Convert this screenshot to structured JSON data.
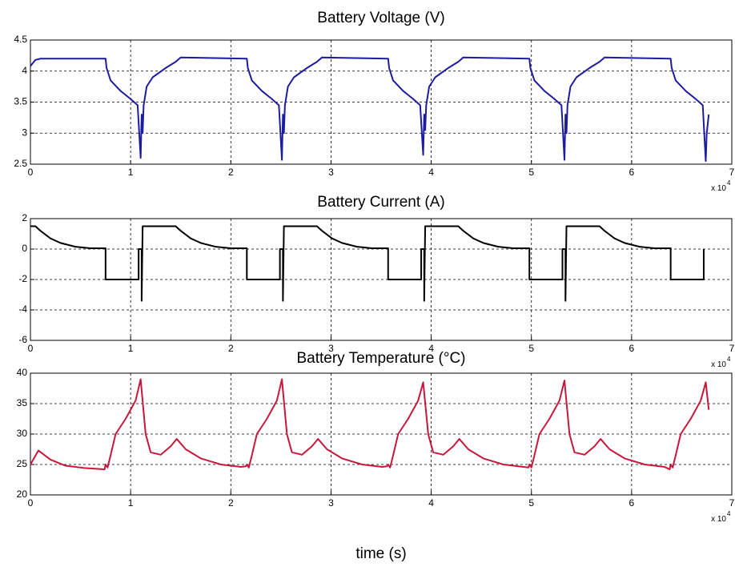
{
  "chart_data": [
    {
      "type": "line",
      "title": "Battery Voltage (V)",
      "color": "#1c1ca0",
      "xlim": [
        0,
        7
      ],
      "xticks": [
        0,
        1,
        2,
        3,
        4,
        5,
        6,
        7
      ],
      "ylim": [
        2.5,
        4.5
      ],
      "yticks": [
        2.5,
        3,
        3.5,
        4,
        4.5
      ],
      "grid": true,
      "x_multiplier": "x 10",
      "x_multiplier_exponent": 4,
      "x": [
        0,
        0.05,
        0.1,
        0.75,
        0.76,
        0.8,
        0.9,
        1.0,
        1.07,
        1.1,
        1.11,
        1.12,
        1.13,
        1.16,
        1.22,
        1.35,
        1.45,
        1.5,
        2.16,
        2.17,
        2.21,
        2.31,
        2.41,
        2.48,
        2.51,
        2.52,
        2.53,
        2.54,
        2.57,
        2.63,
        2.76,
        2.86,
        2.91,
        3.57,
        3.58,
        3.62,
        3.72,
        3.82,
        3.89,
        3.92,
        3.93,
        3.94,
        3.95,
        3.98,
        4.04,
        4.17,
        4.27,
        4.32,
        4.98,
        4.99,
        5.03,
        5.13,
        5.23,
        5.3,
        5.33,
        5.34,
        5.35,
        5.36,
        5.39,
        5.45,
        5.58,
        5.68,
        5.73,
        6.39,
        6.4,
        6.44,
        6.54,
        6.64,
        6.71,
        6.74,
        6.75,
        6.77
      ],
      "values": [
        4.08,
        4.18,
        4.2,
        4.2,
        4.05,
        3.85,
        3.68,
        3.55,
        3.45,
        2.6,
        3.3,
        3.0,
        3.45,
        3.75,
        3.9,
        4.05,
        4.15,
        4.22,
        4.2,
        4.05,
        3.85,
        3.68,
        3.55,
        3.45,
        2.57,
        3.3,
        3.0,
        3.45,
        3.75,
        3.9,
        4.05,
        4.15,
        4.22,
        4.2,
        4.05,
        3.85,
        3.68,
        3.55,
        3.45,
        2.65,
        3.3,
        3.05,
        3.45,
        3.75,
        3.9,
        4.05,
        4.15,
        4.22,
        4.2,
        4.05,
        3.85,
        3.68,
        3.55,
        3.45,
        2.57,
        3.3,
        3.0,
        3.45,
        3.75,
        3.9,
        4.05,
        4.15,
        4.22,
        4.2,
        4.05,
        3.85,
        3.68,
        3.55,
        3.45,
        2.55,
        3.0,
        3.3
      ]
    },
    {
      "type": "line",
      "title": "Battery Current (A)",
      "color": "#000000",
      "xlim": [
        0,
        7
      ],
      "xticks": [
        0,
        1,
        2,
        3,
        4,
        5,
        6,
        7
      ],
      "ylim": [
        -6,
        2
      ],
      "yticks": [
        -6,
        -4,
        -2,
        0,
        2
      ],
      "grid": true,
      "x_multiplier": "x 10",
      "x_multiplier_exponent": 4,
      "x": [
        0,
        0.05,
        0.1,
        0.2,
        0.3,
        0.45,
        0.6,
        0.75,
        0.75,
        1.08,
        1.08,
        1.11,
        1.11,
        1.12,
        1.45,
        1.5,
        1.6,
        1.7,
        1.85,
        2.0,
        2.16,
        2.16,
        2.49,
        2.49,
        2.52,
        2.52,
        2.53,
        2.86,
        2.91,
        3.01,
        3.11,
        3.26,
        3.41,
        3.57,
        3.57,
        3.9,
        3.9,
        3.93,
        3.93,
        3.94,
        4.27,
        4.32,
        4.42,
        4.52,
        4.67,
        4.82,
        4.98,
        4.98,
        5.31,
        5.31,
        5.34,
        5.34,
        5.35,
        5.68,
        5.73,
        5.83,
        5.93,
        6.08,
        6.23,
        6.39,
        6.39,
        6.72,
        6.72
      ],
      "values": [
        1.5,
        1.5,
        1.2,
        0.7,
        0.4,
        0.15,
        0.05,
        0.05,
        -2,
        -2,
        0,
        0,
        -3.4,
        1.5,
        1.5,
        1.2,
        0.7,
        0.4,
        0.15,
        0.05,
        0.05,
        -2,
        -2,
        0,
        0,
        -3.4,
        1.5,
        1.5,
        1.2,
        0.7,
        0.4,
        0.15,
        0.05,
        0.05,
        -2,
        -2,
        0,
        0,
        -3.4,
        1.5,
        1.5,
        1.2,
        0.7,
        0.4,
        0.15,
        0.05,
        0.05,
        -2,
        -2,
        0,
        0,
        -3.4,
        1.5,
        1.5,
        1.2,
        0.7,
        0.4,
        0.15,
        0.05,
        0.05,
        -2,
        -2,
        0
      ]
    },
    {
      "type": "line",
      "title": "Battery Temperature (°C)",
      "xlabel": "time (s)",
      "color": "#c8183a",
      "xlim": [
        0,
        7
      ],
      "xticks": [
        0,
        1,
        2,
        3,
        4,
        5,
        6,
        7
      ],
      "ylim": [
        20,
        40
      ],
      "yticks": [
        20,
        25,
        30,
        35,
        40
      ],
      "grid": true,
      "x_multiplier": "x 10",
      "x_multiplier_exponent": 4,
      "x": [
        0,
        0.08,
        0.2,
        0.35,
        0.55,
        0.74,
        0.75,
        0.77,
        0.8,
        0.85,
        0.95,
        1.05,
        1.1,
        1.15,
        1.2,
        1.3,
        1.4,
        1.46,
        1.55,
        1.7,
        1.9,
        2.1,
        2.15,
        2.16,
        2.18,
        2.21,
        2.26,
        2.36,
        2.46,
        2.51,
        2.56,
        2.61,
        2.71,
        2.81,
        2.87,
        2.96,
        3.11,
        3.31,
        3.51,
        3.56,
        3.57,
        3.59,
        3.62,
        3.67,
        3.77,
        3.87,
        3.92,
        3.97,
        4.02,
        4.12,
        4.22,
        4.28,
        4.37,
        4.52,
        4.72,
        4.92,
        4.97,
        4.98,
        5.0,
        5.03,
        5.08,
        5.18,
        5.28,
        5.33,
        5.38,
        5.43,
        5.53,
        5.63,
        5.69,
        5.78,
        5.93,
        6.13,
        6.33,
        6.38,
        6.39,
        6.41,
        6.44,
        6.49,
        6.59,
        6.69,
        6.74,
        6.77
      ],
      "values": [
        25,
        27.3,
        25.8,
        24.8,
        24.4,
        24.2,
        25,
        24.5,
        26.5,
        30,
        32.5,
        35.5,
        39,
        30,
        27,
        26.6,
        28,
        29.2,
        27.5,
        26,
        25,
        24.6,
        24.7,
        25,
        24.5,
        26.5,
        30,
        32.5,
        35.5,
        39,
        30,
        27,
        26.6,
        28,
        29.2,
        27.5,
        26,
        25,
        24.6,
        24.7,
        25,
        24.5,
        26.5,
        30,
        32.5,
        35.5,
        38.5,
        30,
        27,
        26.6,
        28,
        29.2,
        27.5,
        26,
        25,
        24.6,
        24.5,
        25,
        24.5,
        26.5,
        30,
        32.5,
        35.5,
        38.8,
        30,
        27,
        26.6,
        28,
        29.2,
        27.5,
        26,
        25,
        24.6,
        24.2,
        25,
        24.5,
        26.5,
        30,
        32.5,
        35.5,
        38.5,
        34
      ]
    }
  ]
}
